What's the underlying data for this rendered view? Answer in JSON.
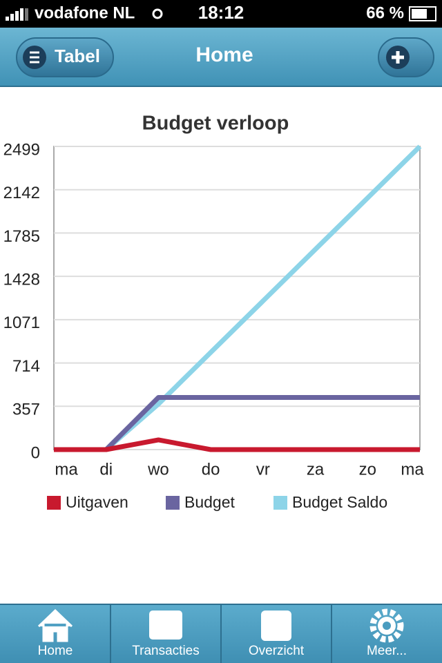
{
  "status_bar": {
    "carrier": "vodafone NL",
    "time": "18:12",
    "battery": "66 %"
  },
  "nav_bar": {
    "left_button": "Tabel",
    "title": "Home"
  },
  "chart_data": {
    "type": "line",
    "title": "Budget verloop",
    "categories": [
      "ma",
      "di",
      "wo",
      "do",
      "vr",
      "za",
      "zo",
      "ma"
    ],
    "series": [
      {
        "name": "Uitgaven",
        "color": "#c8192e",
        "values": [
          0,
          0,
          80,
          0,
          0,
          0,
          0,
          0
        ]
      },
      {
        "name": "Budget",
        "color": "#6a65a0",
        "values": [
          0,
          0,
          430,
          430,
          430,
          430,
          430,
          430
        ]
      },
      {
        "name": "Budget Saldo",
        "color": "#8dd4e8",
        "values": [
          0,
          0,
          376,
          801,
          1225,
          1650,
          2074,
          2499
        ]
      }
    ],
    "ylim": [
      0,
      2499
    ],
    "yticks": [
      0,
      357,
      714,
      1071,
      1428,
      1785,
      2142,
      2499
    ],
    "grid": true
  },
  "tab_bar": {
    "tabs": [
      "Home",
      "Transacties",
      "Overzicht",
      "Meer..."
    ]
  }
}
